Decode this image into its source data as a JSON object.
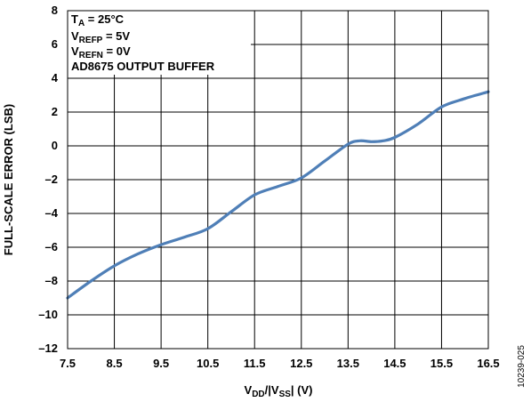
{
  "chart_data": {
    "type": "line",
    "xlabel": {
      "main": "V",
      "sub1": "DD",
      "mid": "/|V",
      "sub2": "SS",
      "end": "| (V)"
    },
    "ylabel": "FULL-SCALE ERROR (LSB)",
    "xlim": [
      7.5,
      16.5
    ],
    "ylim": [
      -12,
      8
    ],
    "x_ticks": [
      7.5,
      8.5,
      9.5,
      10.5,
      11.5,
      12.5,
      13.5,
      14.5,
      15.5,
      16.5
    ],
    "x_tick_labels": [
      "7.5",
      "8.5",
      "9.5",
      "10.5",
      "11.5",
      "12.5",
      "13.5",
      "14.5",
      "15.5",
      "16.5"
    ],
    "y_ticks": [
      -12,
      -10,
      -8,
      -6,
      -4,
      -2,
      0,
      2,
      4,
      6,
      8
    ],
    "y_tick_labels": [
      "–12",
      "–10",
      "–8",
      "–6",
      "–4",
      "–2",
      "0",
      "2",
      "4",
      "6",
      "8"
    ],
    "grid": true,
    "series": [
      {
        "color": "#4f7fb7",
        "x": [
          7.5,
          8.0,
          8.5,
          9.0,
          9.5,
          10.0,
          10.5,
          11.0,
          11.5,
          12.0,
          12.5,
          13.0,
          13.5,
          13.75,
          14.0,
          14.25,
          14.5,
          15.0,
          15.5,
          16.0,
          16.5
        ],
        "y": [
          -9.0,
          -8.0,
          -7.1,
          -6.4,
          -5.85,
          -5.4,
          -4.9,
          -3.9,
          -2.9,
          -2.4,
          -1.9,
          -0.9,
          0.1,
          0.3,
          0.25,
          0.3,
          0.5,
          1.3,
          2.3,
          2.8,
          3.2
        ]
      }
    ],
    "annotation": {
      "line1": {
        "main": "T",
        "sub": "A",
        "rest": " = 25°C"
      },
      "line2": {
        "main": "V",
        "sub": "REFP",
        "rest": " = 5V"
      },
      "line3": {
        "main": "V",
        "sub": "REFN",
        "rest": " = 0V"
      },
      "line4": "AD8675 OUTPUT BUFFER"
    }
  },
  "figure_id": "10239-025"
}
